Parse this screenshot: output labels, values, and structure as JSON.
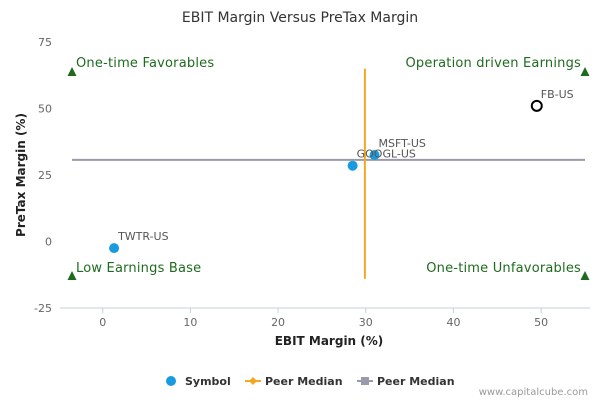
{
  "chart_data": {
    "type": "scatter",
    "title": "EBIT Margin Versus PreTax Margin",
    "xlabel": "EBIT Margin (%)",
    "ylabel": "PreTax Margin (%)",
    "xlim": [
      -3.5,
      55
    ],
    "ylim": [
      -25,
      75
    ],
    "xticks": [
      0,
      10,
      20,
      30,
      40,
      50
    ],
    "yticks": [
      -25,
      0,
      25,
      50,
      75
    ],
    "grid": false,
    "points": [
      {
        "label": "FB-US",
        "x": 49.5,
        "y": 51,
        "style": "hollow"
      },
      {
        "label": "MSFT-US",
        "x": 31,
        "y": 32.5,
        "style": "filled"
      },
      {
        "label": "GOOGL-US",
        "x": 28.5,
        "y": 28.5,
        "style": "filled"
      },
      {
        "label": "TWTR-US",
        "x": 1.3,
        "y": -2.5,
        "style": "filled"
      }
    ],
    "peer_median": {
      "x": 29.9,
      "y": 30.7
    },
    "quadrants": {
      "top_left": "One-time Favorables",
      "top_right": "Operation driven Earnings",
      "bottom_left": "Low Earnings Base",
      "bottom_right": "One-time Unfavorables"
    },
    "legend": {
      "position": "bottom",
      "items": [
        {
          "label": "Symbol",
          "kind": "circle",
          "color": "#1a9be0"
        },
        {
          "label": "Peer Median",
          "kind": "diamond-line",
          "color": "#f5a623"
        },
        {
          "label": "Peer Median",
          "kind": "square-line",
          "color": "#9a9aaa"
        }
      ]
    },
    "colors": {
      "point": "#1a9be0",
      "vline": "#f5a623",
      "hline": "#9a9aaa",
      "quadrant_text": "#1e6b1e"
    }
  },
  "credit": "www.capitalcube.com"
}
